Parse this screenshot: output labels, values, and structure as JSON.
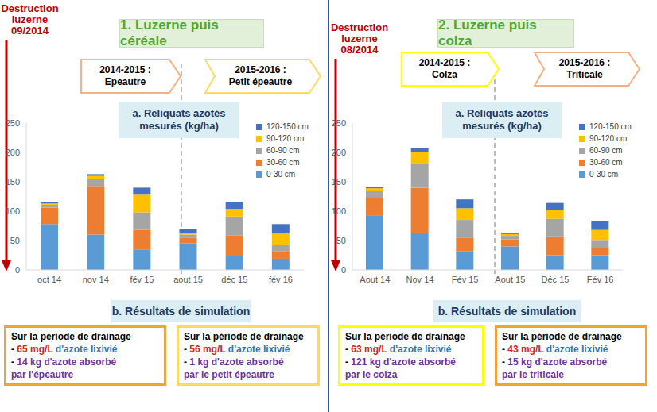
{
  "chart_data": [
    {
      "type": "bar",
      "stacked": true,
      "title": "1. Luzerne puis céréale",
      "subtitle": "a. Reliquats azotés mesurés (kg/ha)",
      "destruction": [
        "Destruction",
        "luzerne",
        "09/2014"
      ],
      "periods": [
        {
          "years": "2014-2015 :",
          "crop": "Epeautre"
        },
        {
          "years": "2015-2016 :",
          "crop": "Petit épeautre"
        }
      ],
      "categories": [
        "oct 14",
        "nov 14",
        "fév 15",
        "aout 15",
        "déc 15",
        "fév 16"
      ],
      "series": [
        {
          "name": "0-30 cm",
          "color": "#5B9BD5",
          "values": [
            78,
            60,
            34,
            45,
            24,
            19
          ]
        },
        {
          "name": "30-60 cm",
          "color": "#ED7D31",
          "values": [
            28,
            83,
            34,
            10,
            35,
            13
          ]
        },
        {
          "name": "60-90 cm",
          "color": "#A5A5A5",
          "values": [
            5,
            12,
            30,
            5,
            32,
            10
          ]
        },
        {
          "name": "90-120 cm",
          "color": "#FFC000",
          "values": [
            2,
            5,
            30,
            3,
            13,
            20
          ]
        },
        {
          "name": "120-150 cm",
          "color": "#4472C4",
          "values": [
            2,
            3,
            12,
            6,
            12,
            16
          ]
        }
      ],
      "ylim": [
        0,
        250
      ],
      "yticks": [
        0,
        50,
        100,
        150,
        200,
        250
      ],
      "grid": false,
      "legend": "upper right",
      "simulation_title": "b. Résultats de simulation",
      "bullet": "-",
      "simulation": [
        {
          "heading": "Sur la période de drainage",
          "leached": {
            "value": 65,
            "unit": "mg/L",
            "text": "d'azote lixivié"
          },
          "absorbed": {
            "value": 14,
            "unit": "kg",
            "text": "d'azote absorbé",
            "crop": "par l'épeautre"
          }
        },
        {
          "heading": "Sur la période de drainage",
          "leached": {
            "value": 56,
            "unit": "mg/L",
            "text": "d'azote lixivié"
          },
          "absorbed": {
            "value": 1,
            "unit": "kg",
            "text": "d'azote absorbé",
            "crop": "par le petit épeautre"
          }
        }
      ]
    },
    {
      "type": "bar",
      "stacked": true,
      "title": "2. Luzerne puis colza",
      "subtitle": "a. Reliquats azotés mesurés (kg/ha)",
      "destruction": [
        "Destruction",
        "luzerne",
        "08/2014"
      ],
      "periods": [
        {
          "years": "2014-2015 :",
          "crop": "Colza"
        },
        {
          "years": "2015-2016 :",
          "crop": "Triticale"
        }
      ],
      "categories": [
        "Aout 14",
        "Nov 14",
        "Fév 15",
        "Aout 15",
        "Déc 15",
        "Fév 16"
      ],
      "series": [
        {
          "name": "0-30 cm",
          "color": "#5B9BD5",
          "values": [
            92,
            62,
            32,
            40,
            25,
            25
          ]
        },
        {
          "name": "30-60 cm",
          "color": "#ED7D31",
          "values": [
            30,
            78,
            23,
            12,
            32,
            14
          ]
        },
        {
          "name": "60-90 cm",
          "color": "#A5A5A5",
          "values": [
            12,
            42,
            30,
            6,
            30,
            12
          ]
        },
        {
          "name": "90-120 cm",
          "color": "#FFC000",
          "values": [
            5,
            18,
            20,
            3,
            15,
            17
          ]
        },
        {
          "name": "120-150 cm",
          "color": "#4472C4",
          "values": [
            2,
            7,
            15,
            2,
            12,
            15
          ]
        }
      ],
      "ylim": [
        0,
        250
      ],
      "yticks": [
        0,
        50,
        100,
        150,
        200,
        250
      ],
      "grid": false,
      "legend": "upper right",
      "simulation_title": "b. Résultats de simulation",
      "bullet": "-",
      "simulation": [
        {
          "heading": "Sur la période de drainage",
          "leached": {
            "value": 63,
            "unit": "mg/L",
            "text": "d'azote lixivié"
          },
          "absorbed": {
            "value": 121,
            "unit": "kg",
            "text": "d'azote absorbé",
            "crop": "par le colza"
          }
        },
        {
          "heading": "Sur la période de drainage",
          "leached": {
            "value": 43,
            "unit": "mg/L",
            "text": "d'azote lixivié"
          },
          "absorbed": {
            "value": 15,
            "unit": "kg",
            "text": "d'azote absorbé",
            "crop": "par le triticale"
          }
        }
      ]
    }
  ]
}
